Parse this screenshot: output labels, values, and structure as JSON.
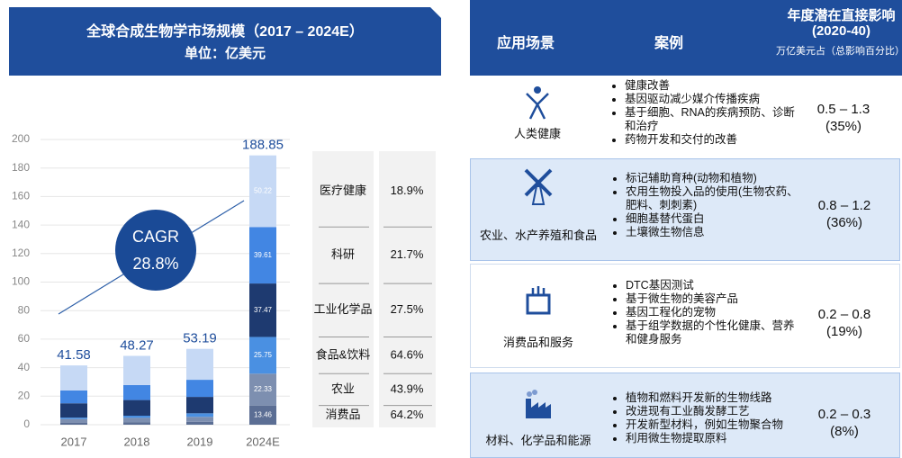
{
  "chart_data": {
    "type": "bar",
    "stacked": true,
    "title": "全球合成生物学市场规模（2017 – 2024E）",
    "subtitle": "单位：亿美元",
    "categories": [
      "2017",
      "2018",
      "2019",
      "2024E"
    ],
    "series": [
      {
        "name": "消费品",
        "color": "#5b6e94",
        "cagr": "64.2%",
        "values": [
          1.5,
          1.8,
          2.0,
          13.46
        ]
      },
      {
        "name": "农业",
        "color": "#7d8fb0",
        "cagr": "43.9%",
        "values": [
          2.5,
          3.0,
          3.5,
          22.33
        ]
      },
      {
        "name": "食品&饮料",
        "color": "#4a90e2",
        "cagr": "64.6%",
        "values": [
          1.0,
          1.5,
          2.5,
          25.75
        ]
      },
      {
        "name": "工业化学品",
        "color": "#1e3a70",
        "cagr": "27.5%",
        "values": [
          10.0,
          11.0,
          11.5,
          37.47
        ]
      },
      {
        "name": "科研",
        "color": "#4286e3",
        "cagr": "21.7%",
        "values": [
          9.0,
          10.5,
          12.0,
          39.61
        ]
      },
      {
        "name": "医疗健康",
        "color": "#c6d9f5",
        "cagr": "18.9%",
        "values": [
          17.58,
          20.47,
          21.69,
          50.22
        ]
      }
    ],
    "totals": [
      41.58,
      48.27,
      53.19,
      188.85
    ],
    "annotation": {
      "label": "CAGR",
      "value": "28.8%"
    },
    "ylim": [
      0,
      200
    ],
    "yticks": [
      0,
      20,
      40,
      60,
      80,
      100,
      120,
      140,
      160,
      180,
      200
    ],
    "grid": true
  },
  "impact_table": {
    "headers": [
      "应用场景",
      "案例",
      "年度潜在直接影响"
    ],
    "header_period": "(2020-40)",
    "header_unit": "万亿美元占（总影响百分比）",
    "rows": [
      {
        "scene": "人类健康",
        "cases": [
          "健康改善",
          "基因驱动减少媒介传播疾病",
          "基于细胞、RNA的疾病预防、诊断和治疗",
          "药物开发和交付的改善"
        ],
        "range": "0.5 – 1.3",
        "share": "(35%)"
      },
      {
        "scene": "农业、水产养殖和食品",
        "cases": [
          "标记辅助育种(动物和植物)",
          "农用生物投入品的使用(生物农药、肥料、刺刺素)",
          "细胞基替代蛋白",
          "土壤微生物信息"
        ],
        "range": "0.8 – 1.2",
        "share": "(36%)"
      },
      {
        "scene": "消费品和服务",
        "cases": [
          "DTC基因测试",
          "基于微生物的美容产品",
          "基因工程化的宠物",
          "基于组学数据的个性化健康、营养和健身服务"
        ],
        "range": "0.2 – 0.8",
        "share": "(19%)"
      },
      {
        "scene": "材料、化学品和能源",
        "cases": [
          "植物和燃料开发新的生物线路",
          "改进现有工业酶发酵工艺",
          "开发新型材料，例如生物聚合物",
          "利用微生物提取原料"
        ],
        "range": "0.2 – 0.3",
        "share": "(8%)"
      }
    ]
  }
}
